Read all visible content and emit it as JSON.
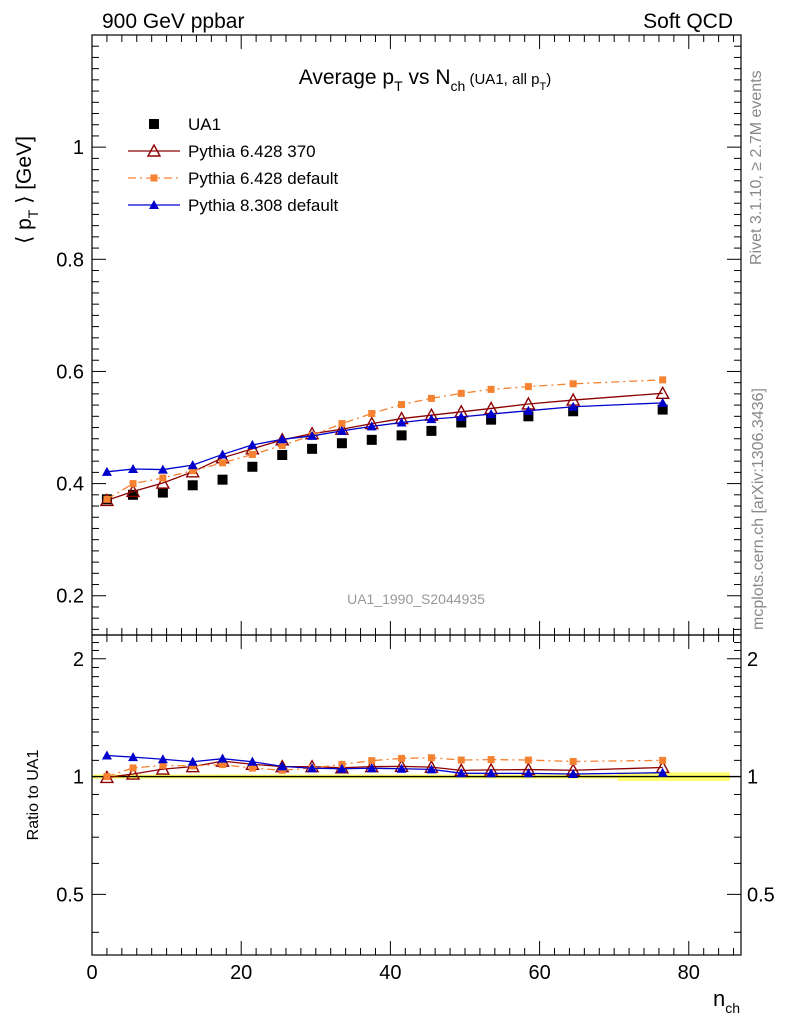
{
  "header": {
    "left": "900 GeV ppbar",
    "right": "Soft QCD"
  },
  "side_labels": {
    "rivet": "Rivet 3.1.10, ≥ 2.7M events",
    "mcplots": "mcplots.cern.ch [arXiv:1306.3436]"
  },
  "chart_data": {
    "type": "scatter",
    "title": {
      "main": "Average p",
      "sub_T": "T",
      "vs": " vs N",
      "sub_ch": "ch",
      "extra": " (UA1, all p",
      "extra_sub": "T",
      "extra_close": ")"
    },
    "analysis_id": "UA1_1990_S2044935",
    "ylabel": {
      "open": "⟨ p",
      "sub": "T",
      "close": " ⟩ [GeV]"
    },
    "xlabel": {
      "main": "n",
      "sub": "ch"
    },
    "ratio_ylabel": "Ratio to UA1",
    "xlim": [
      0,
      87
    ],
    "ylim": [
      0.13,
      1.2
    ],
    "ratio_ylim": [
      0.35,
      2.3
    ],
    "xticks": [
      0,
      20,
      40,
      60,
      80
    ],
    "yticks": [
      0.2,
      0.4,
      0.6,
      0.8,
      1
    ],
    "ytick_labels": [
      "0.2",
      "0.4",
      "0.6",
      "0.8",
      "1"
    ],
    "ratio_yticks": [
      0.5,
      1,
      2
    ],
    "ratio_ytick_labels": [
      "0.5",
      "1",
      "2"
    ],
    "x": [
      2,
      5.5,
      9.5,
      13.5,
      17.5,
      21.5,
      25.5,
      29.5,
      33.5,
      37.5,
      41.5,
      45.5,
      49.5,
      53.5,
      58.5,
      64.5,
      76.5
    ],
    "series": [
      {
        "name": "UA1",
        "style": "data",
        "color": "#000000",
        "values": [
          0.372,
          0.38,
          0.384,
          0.397,
          0.407,
          0.43,
          0.451,
          0.462,
          0.472,
          0.478,
          0.486,
          0.494,
          0.509,
          0.514,
          0.52,
          0.529,
          0.532
        ]
      },
      {
        "name": "Pythia 6.428 370",
        "style": "open-triangle",
        "color": "#8b0000",
        "values": [
          0.37,
          0.386,
          0.401,
          0.421,
          0.446,
          0.462,
          0.478,
          0.489,
          0.497,
          0.507,
          0.516,
          0.522,
          0.528,
          0.534,
          0.542,
          0.549,
          0.561
        ],
        "ratio": [
          0.995,
          1.015,
          1.045,
          1.06,
          1.095,
          1.075,
          1.06,
          1.06,
          1.053,
          1.06,
          1.062,
          1.057,
          1.037,
          1.04,
          1.042,
          1.038,
          1.055
        ]
      },
      {
        "name": "Pythia 6.428 default",
        "style": "square-dashdot",
        "color": "#f58231",
        "values": [
          0.372,
          0.4,
          0.41,
          0.423,
          0.437,
          0.452,
          0.468,
          0.486,
          0.507,
          0.525,
          0.541,
          0.552,
          0.561,
          0.568,
          0.573,
          0.578,
          0.585
        ],
        "ratio": [
          1.0,
          1.052,
          1.068,
          1.065,
          1.073,
          1.051,
          1.038,
          1.052,
          1.074,
          1.098,
          1.113,
          1.117,
          1.102,
          1.105,
          1.102,
          1.093,
          1.1
        ]
      },
      {
        "name": "Pythia 8.308 default",
        "style": "filled-triangle",
        "color": "#0000cd",
        "values": [
          0.421,
          0.426,
          0.425,
          0.433,
          0.452,
          0.469,
          0.479,
          0.485,
          0.494,
          0.502,
          0.509,
          0.515,
          0.519,
          0.524,
          0.53,
          0.537,
          0.544
        ],
        "ratio": [
          1.132,
          1.121,
          1.107,
          1.091,
          1.111,
          1.091,
          1.062,
          1.05,
          1.047,
          1.05,
          1.047,
          1.043,
          1.02,
          1.019,
          1.019,
          1.015,
          1.023
        ]
      }
    ],
    "legend_placement": "top-left",
    "ratio_band_color": "#ffff66"
  }
}
